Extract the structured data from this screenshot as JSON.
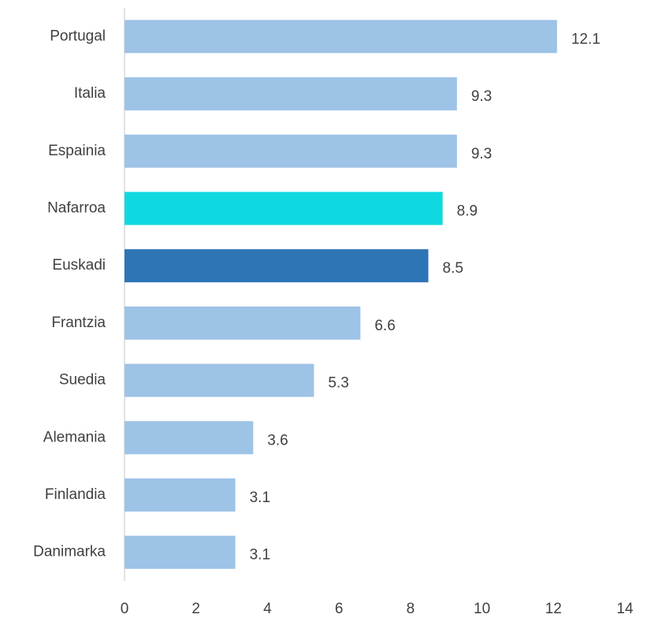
{
  "chart_data": {
    "type": "hbar",
    "categories": [
      "Portugal",
      "Italia",
      "Espainia",
      "Nafarroa",
      "Euskadi",
      "Frantzia",
      "Suedia",
      "Alemania",
      "Finlandia",
      "Danimarka"
    ],
    "values": [
      12.1,
      9.3,
      9.3,
      8.9,
      8.5,
      6.6,
      5.3,
      3.6,
      3.1,
      3.1
    ],
    "colors": [
      "#9dc3e6",
      "#9dc3e6",
      "#9dc3e6",
      "#0fd9e0",
      "#2e75b6",
      "#9dc3e6",
      "#9dc3e6",
      "#9dc3e6",
      "#9dc3e6",
      "#9dc3e6"
    ],
    "xlim": [
      0,
      14
    ],
    "xticks": [
      0,
      2,
      4,
      6,
      8,
      10,
      12,
      14
    ],
    "grid": false
  }
}
